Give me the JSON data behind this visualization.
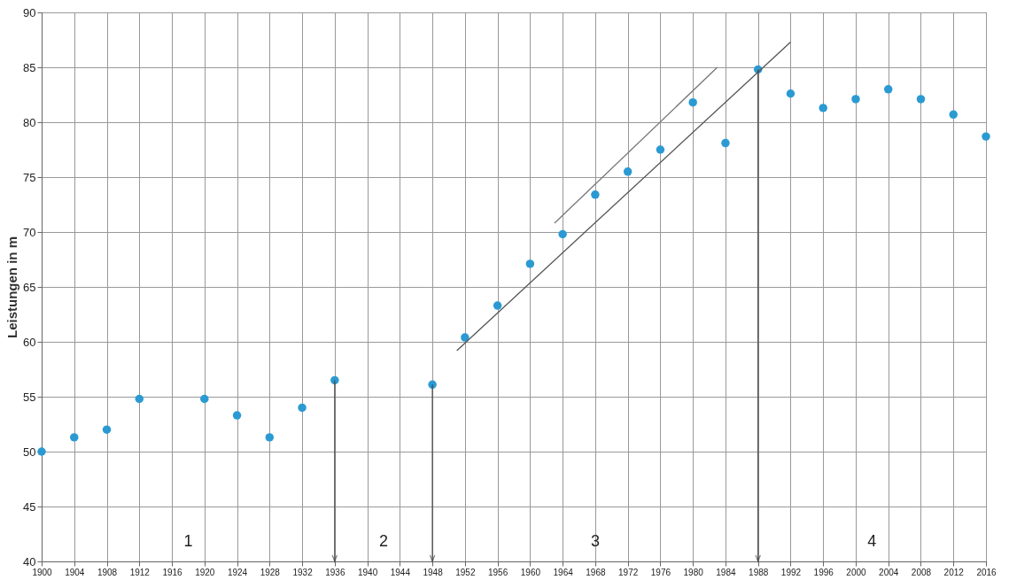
{
  "chart_data": {
    "type": "scatter",
    "ylabel": "Leistungen in m",
    "xlim": [
      1900,
      2016
    ],
    "ylim": [
      40,
      90
    ],
    "xticks": [
      1900,
      1904,
      1908,
      1912,
      1916,
      1920,
      1924,
      1928,
      1932,
      1936,
      1940,
      1944,
      1948,
      1952,
      1956,
      1960,
      1964,
      1968,
      1972,
      1976,
      1980,
      1984,
      1988,
      1992,
      1996,
      2000,
      2004,
      2008,
      2012,
      2016
    ],
    "yticks": [
      40,
      45,
      50,
      55,
      60,
      65,
      70,
      75,
      80,
      85,
      90
    ],
    "grid": true,
    "marker": "circle",
    "series": [
      {
        "color": "#2b9ad3",
        "x": [
          1900,
          1904,
          1908,
          1912,
          1920,
          1924,
          1928,
          1932,
          1936,
          1948,
          1952,
          1956,
          1960,
          1964,
          1968,
          1972,
          1976,
          1980,
          1984,
          1988,
          1992,
          1996,
          2000,
          2004,
          2008,
          2012,
          2016
        ],
        "values": [
          50,
          51.3,
          52,
          54.8,
          54.8,
          53.3,
          51.3,
          54,
          56.5,
          56.1,
          60.4,
          63.3,
          67.1,
          69.8,
          73.4,
          75.5,
          77.5,
          81.8,
          78.1,
          84.8,
          82.6,
          81.3,
          82.1,
          83,
          82.1,
          80.7,
          78.7
        ]
      },
      {
        "type": "line",
        "marker": "none",
        "color": "#555555",
        "x": [
          1951,
          1992
        ],
        "values": [
          59.2,
          87.3
        ]
      },
      {
        "type": "line",
        "marker": "none",
        "color": "#777777",
        "x": [
          1963,
          1983
        ],
        "values": [
          70.8,
          85
        ]
      }
    ],
    "ref_lines": [
      {
        "axis": "x",
        "value": 1936,
        "color": "#444444"
      },
      {
        "axis": "x",
        "value": 1948,
        "color": "#444444"
      },
      {
        "axis": "x",
        "value": 1988,
        "color": "#444444"
      }
    ],
    "annotations": [
      "1",
      "2",
      "3",
      "4"
    ]
  }
}
